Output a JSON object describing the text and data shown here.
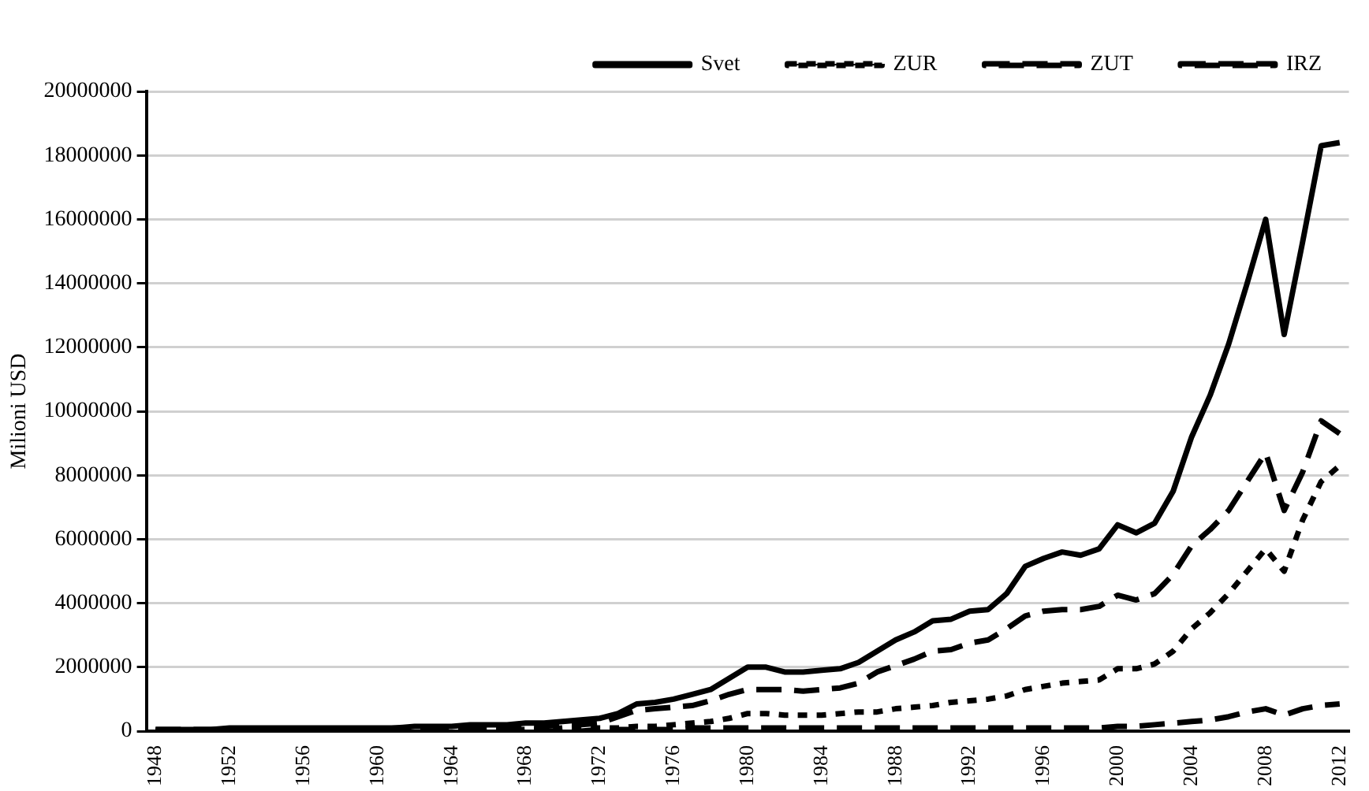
{
  "chart_data": {
    "type": "line",
    "ylabel": "Milioni USD",
    "categories": [
      "1948",
      null,
      null,
      null,
      "1952",
      null,
      null,
      null,
      "1956",
      null,
      null,
      null,
      "1960",
      null,
      null,
      null,
      "1964",
      null,
      null,
      null,
      "1968",
      null,
      null,
      null,
      "1972",
      null,
      null,
      null,
      "1976",
      null,
      null,
      null,
      "1980",
      null,
      null,
      null,
      "1984",
      null,
      null,
      null,
      "1988",
      null,
      null,
      null,
      "1992",
      null,
      null,
      null,
      "1996",
      null,
      null,
      null,
      "2000",
      null,
      null,
      null,
      "2004",
      null,
      null,
      null,
      "2008",
      null,
      null,
      null,
      "2012"
    ],
    "series": [
      {
        "name": "Svet",
        "color": "#000000",
        "line_style": "solid",
        "values": [
          50000,
          50000,
          50000,
          50000,
          100000,
          100000,
          100000,
          100000,
          100000,
          100000,
          100000,
          100000,
          100000,
          100000,
          150000,
          150000,
          150000,
          200000,
          200000,
          200000,
          250000,
          250000,
          300000,
          350000,
          400000,
          550000,
          850000,
          900000,
          1000000,
          1150000,
          1300000,
          1650000,
          2000000,
          2000000,
          1850000,
          1850000,
          1900000,
          1950000,
          2150000,
          2500000,
          2850000,
          3100000,
          3450000,
          3500000,
          3750000,
          3800000,
          4300000,
          5150000,
          5400000,
          5600000,
          5500000,
          5700000,
          6450000,
          6200000,
          6500000,
          7500000,
          9200000,
          10500000,
          12100000,
          14000000,
          16000000,
          12400000,
          15300000,
          18300000,
          18400000
        ]
      },
      {
        "name": "ZUR",
        "color": "#000000",
        "line_style": "dotted",
        "values": [
          0,
          0,
          0,
          0,
          0,
          0,
          0,
          0,
          0,
          0,
          0,
          0,
          0,
          0,
          50000,
          50000,
          50000,
          50000,
          50000,
          50000,
          50000,
          50000,
          100000,
          100000,
          100000,
          100000,
          150000,
          150000,
          200000,
          250000,
          300000,
          400000,
          550000,
          550000,
          500000,
          500000,
          500000,
          550000,
          600000,
          600000,
          700000,
          750000,
          800000,
          900000,
          950000,
          1000000,
          1100000,
          1300000,
          1400000,
          1500000,
          1550000,
          1600000,
          1950000,
          1950000,
          2100000,
          2500000,
          3200000,
          3700000,
          4300000,
          5000000,
          5700000,
          5000000,
          6600000,
          7800000,
          8300000
        ]
      },
      {
        "name": "ZUT",
        "color": "#000000",
        "line_style": "dashed",
        "values": [
          50000,
          50000,
          50000,
          50000,
          50000,
          50000,
          50000,
          50000,
          50000,
          50000,
          50000,
          50000,
          50000,
          100000,
          100000,
          100000,
          100000,
          100000,
          100000,
          150000,
          150000,
          150000,
          200000,
          200000,
          250000,
          450000,
          650000,
          700000,
          750000,
          800000,
          950000,
          1150000,
          1300000,
          1300000,
          1300000,
          1250000,
          1300000,
          1350000,
          1500000,
          1850000,
          2050000,
          2250000,
          2500000,
          2550000,
          2750000,
          2850000,
          3200000,
          3600000,
          3750000,
          3800000,
          3800000,
          3900000,
          4250000,
          4100000,
          4300000,
          4900000,
          5800000,
          6300000,
          6900000,
          7800000,
          8700000,
          6900000,
          8100000,
          9700000,
          9300000
        ]
      },
      {
        "name": "IRZ",
        "color": "#000000",
        "line_style": "dashed",
        "values": [
          0,
          0,
          0,
          0,
          0,
          0,
          0,
          0,
          0,
          0,
          0,
          0,
          0,
          0,
          0,
          0,
          0,
          0,
          0,
          0,
          0,
          0,
          0,
          0,
          50000,
          50000,
          50000,
          50000,
          50000,
          100000,
          100000,
          100000,
          100000,
          100000,
          100000,
          100000,
          100000,
          100000,
          100000,
          100000,
          100000,
          100000,
          100000,
          100000,
          100000,
          100000,
          100000,
          100000,
          100000,
          100000,
          100000,
          100000,
          150000,
          150000,
          200000,
          250000,
          300000,
          350000,
          450000,
          600000,
          700000,
          500000,
          700000,
          800000,
          850000
        ]
      }
    ],
    "ylim": [
      0,
      20000000
    ],
    "yticks": [
      0,
      2000000,
      4000000,
      6000000,
      8000000,
      10000000,
      12000000,
      14000000,
      16000000,
      18000000,
      20000000
    ],
    "grid": "y",
    "legend": "top",
    "marker": "none"
  }
}
